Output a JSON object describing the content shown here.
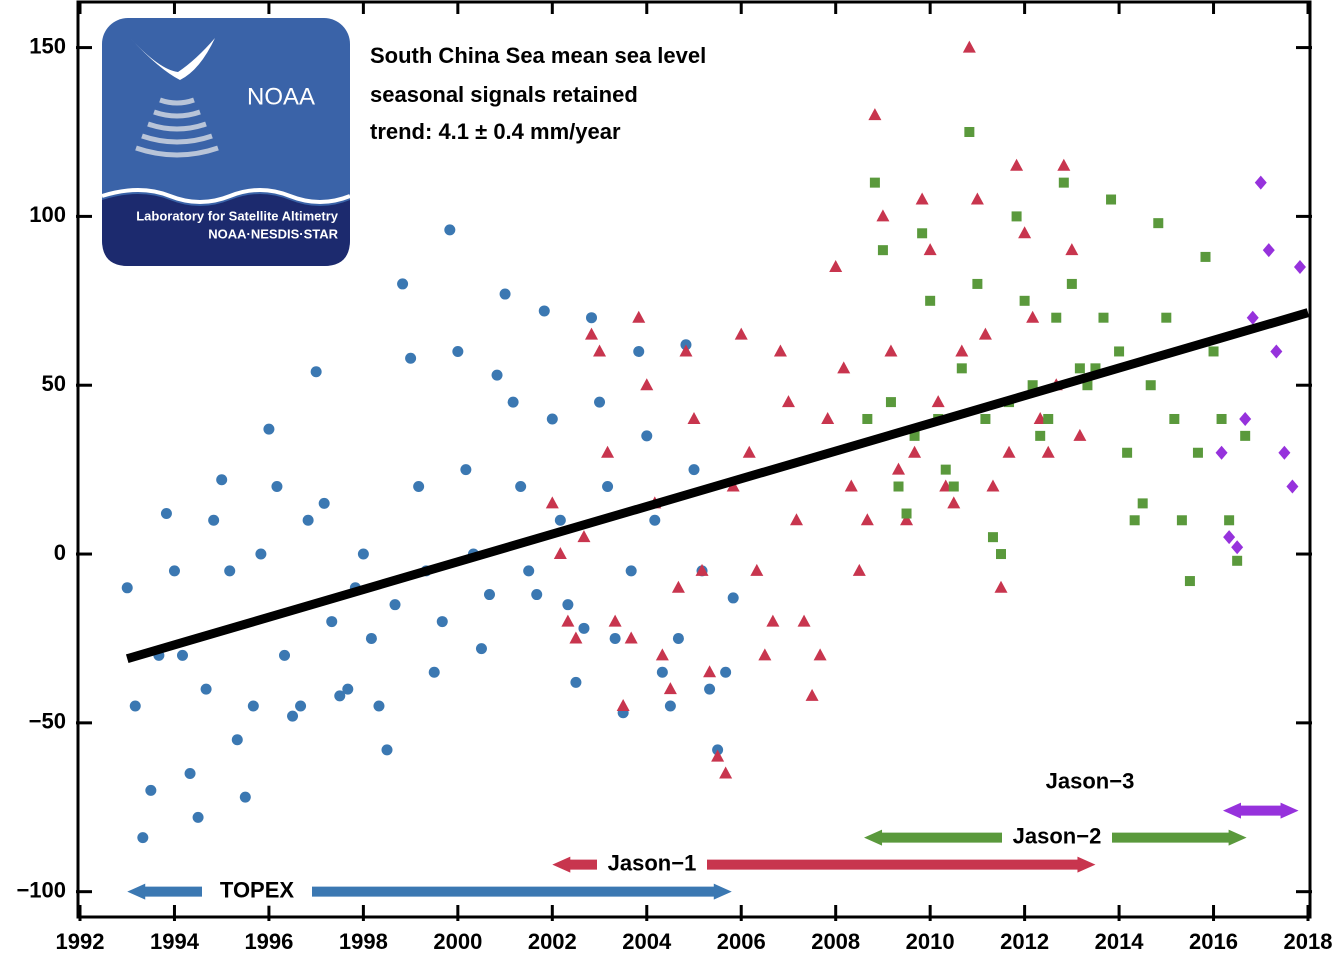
{
  "chart_data": {
    "type": "scatter",
    "annotations": [
      "South China Sea mean sea level",
      "seasonal signals retained",
      "trend:  4.1 ± 0.4 mm/year"
    ],
    "logo": {
      "name": "NOAA",
      "line1": "Laboratory for Satellite Altimetry",
      "line2": "NOAA·NESDIS·STAR"
    },
    "xlim": [
      1992,
      2018
    ],
    "xticks": [
      1992,
      1994,
      1996,
      1998,
      2000,
      2002,
      2004,
      2006,
      2008,
      2010,
      2012,
      2014,
      2016,
      2018
    ],
    "ylim": [
      -107.5,
      163.5
    ],
    "yticks": [
      {
        "value": -100,
        "label": "−100"
      },
      {
        "value": -50,
        "label": "−50"
      },
      0,
      50,
      100,
      150
    ],
    "series": [
      {
        "name": "TOPEX",
        "color": "#3b78b2",
        "marker": "circle",
        "x": [
          1993.0,
          1993.17,
          1993.33,
          1993.5,
          1993.67,
          1993.83,
          1994.0,
          1994.17,
          1994.33,
          1994.5,
          1994.67,
          1994.83,
          1995.0,
          1995.17,
          1995.33,
          1995.5,
          1995.67,
          1995.83,
          1996.0,
          1996.17,
          1996.33,
          1996.5,
          1996.67,
          1996.83,
          1997.0,
          1997.17,
          1997.33,
          1997.5,
          1997.67,
          1997.83,
          1998.0,
          1998.17,
          1998.33,
          1998.5,
          1998.67,
          1998.83,
          1999.0,
          1999.17,
          1999.33,
          1999.5,
          1999.67,
          1999.83,
          2000.0,
          2000.17,
          2000.33,
          2000.5,
          2000.67,
          2000.83,
          2001.0,
          2001.17,
          2001.33,
          2001.5,
          2001.67,
          2001.83,
          2002.0,
          2002.17,
          2002.33,
          2002.5,
          2002.67,
          2002.83,
          2003.0,
          2003.17,
          2003.33,
          2003.5,
          2003.67,
          2003.83,
          2004.0,
          2004.17,
          2004.33,
          2004.5,
          2004.67,
          2004.83,
          2005.0,
          2005.17,
          2005.33,
          2005.5,
          2005.67,
          2005.83
        ],
        "values": [
          -10,
          -45,
          -84,
          -70,
          -30,
          12,
          -5,
          -30,
          -65,
          -78,
          -40,
          10,
          22,
          -5,
          -55,
          -72,
          -45,
          0,
          37,
          20,
          -30,
          -48,
          -45,
          10,
          54,
          15,
          -20,
          -42,
          -40,
          -10,
          0,
          -25,
          -45,
          -58,
          -15,
          80,
          58,
          20,
          -5,
          -35,
          -20,
          96,
          60,
          25,
          0,
          -28,
          -12,
          53,
          77,
          45,
          20,
          -5,
          -12,
          72,
          40,
          10,
          -15,
          -38,
          -22,
          70,
          45,
          20,
          -25,
          -47,
          -5,
          60,
          35,
          10,
          -35,
          -45,
          -25,
          62,
          25,
          -5,
          -40,
          -58,
          -35,
          -13
        ]
      },
      {
        "name": "Jason-1",
        "color": "#c8354e",
        "marker": "triangle",
        "x": [
          2002.0,
          2002.17,
          2002.33,
          2002.5,
          2002.67,
          2002.83,
          2003.0,
          2003.17,
          2003.33,
          2003.5,
          2003.67,
          2003.83,
          2004.0,
          2004.17,
          2004.33,
          2004.5,
          2004.67,
          2004.83,
          2005.0,
          2005.17,
          2005.33,
          2005.5,
          2005.67,
          2005.83,
          2006.0,
          2006.17,
          2006.33,
          2006.5,
          2006.67,
          2006.83,
          2007.0,
          2007.17,
          2007.33,
          2007.5,
          2007.67,
          2007.83,
          2008.0,
          2008.17,
          2008.33,
          2008.5,
          2008.67,
          2008.83,
          2009.0,
          2009.17,
          2009.33,
          2009.5,
          2009.67,
          2009.83,
          2010.0,
          2010.17,
          2010.33,
          2010.5,
          2010.67,
          2010.83,
          2011.0,
          2011.17,
          2011.33,
          2011.5,
          2011.67,
          2011.83,
          2012.0,
          2012.17,
          2012.33,
          2012.5,
          2012.67,
          2012.83,
          2013.0,
          2013.17
        ],
        "values": [
          15,
          0,
          -20,
          -25,
          5,
          65,
          60,
          30,
          -20,
          -45,
          -25,
          70,
          50,
          15,
          -30,
          -40,
          -10,
          60,
          40,
          -5,
          -35,
          -60,
          -65,
          20,
          65,
          30,
          -5,
          -30,
          -20,
          60,
          45,
          10,
          -20,
          -42,
          -30,
          40,
          85,
          55,
          20,
          -5,
          10,
          130,
          100,
          60,
          25,
          10,
          30,
          105,
          90,
          45,
          20,
          15,
          60,
          150,
          105,
          65,
          20,
          -10,
          30,
          115,
          95,
          70,
          40,
          30,
          50,
          115,
          90,
          35
        ]
      },
      {
        "name": "Jason-2",
        "color": "#5a993c",
        "marker": "square",
        "x": [
          2008.67,
          2008.83,
          2009.0,
          2009.17,
          2009.33,
          2009.5,
          2009.67,
          2009.83,
          2010.0,
          2010.17,
          2010.33,
          2010.5,
          2010.67,
          2010.83,
          2011.0,
          2011.17,
          2011.33,
          2011.5,
          2011.67,
          2011.83,
          2012.0,
          2012.17,
          2012.33,
          2012.5,
          2012.67,
          2012.83,
          2013.0,
          2013.17,
          2013.33,
          2013.5,
          2013.67,
          2013.83,
          2014.0,
          2014.17,
          2014.33,
          2014.5,
          2014.67,
          2014.83,
          2015.0,
          2015.17,
          2015.33,
          2015.5,
          2015.67,
          2015.83,
          2016.0,
          2016.17,
          2016.33,
          2016.5,
          2016.67
        ],
        "values": [
          40,
          110,
          90,
          45,
          20,
          12,
          35,
          95,
          75,
          40,
          25,
          20,
          55,
          125,
          80,
          40,
          5,
          0,
          45,
          100,
          75,
          50,
          35,
          40,
          70,
          110,
          80,
          55,
          50,
          55,
          70,
          105,
          60,
          30,
          10,
          15,
          50,
          98,
          70,
          40,
          10,
          -8,
          30,
          88,
          60,
          40,
          10,
          -2,
          35
        ]
      },
      {
        "name": "Jason-3",
        "color": "#9632dc",
        "marker": "diamond",
        "x": [
          2016.17,
          2016.33,
          2016.5,
          2016.67,
          2016.83,
          2017.0,
          2017.17,
          2017.33,
          2017.5,
          2017.67,
          2017.83
        ],
        "values": [
          30,
          5,
          2,
          40,
          70,
          110,
          90,
          60,
          30,
          20,
          85
        ]
      }
    ],
    "trend": {
      "color": "#000000",
      "x": [
        1993,
        2018
      ],
      "values": [
        -31,
        71.5
      ]
    },
    "spans": [
      {
        "label": "TOPEX",
        "start": 1993,
        "end": 2005.8,
        "y": -100,
        "color": "#3b78b2"
      },
      {
        "label": "Jason−1",
        "start": 2002,
        "end": 2013.5,
        "y": -92,
        "color": "#c8354e"
      },
      {
        "label": "Jason−2",
        "start": 2008.6,
        "end": 2016.7,
        "y": -84,
        "color": "#5a993c"
      },
      {
        "label": "Jason−3",
        "start": 2016.2,
        "end": 2017.8,
        "y": -76,
        "color": "#9632dc"
      }
    ]
  }
}
